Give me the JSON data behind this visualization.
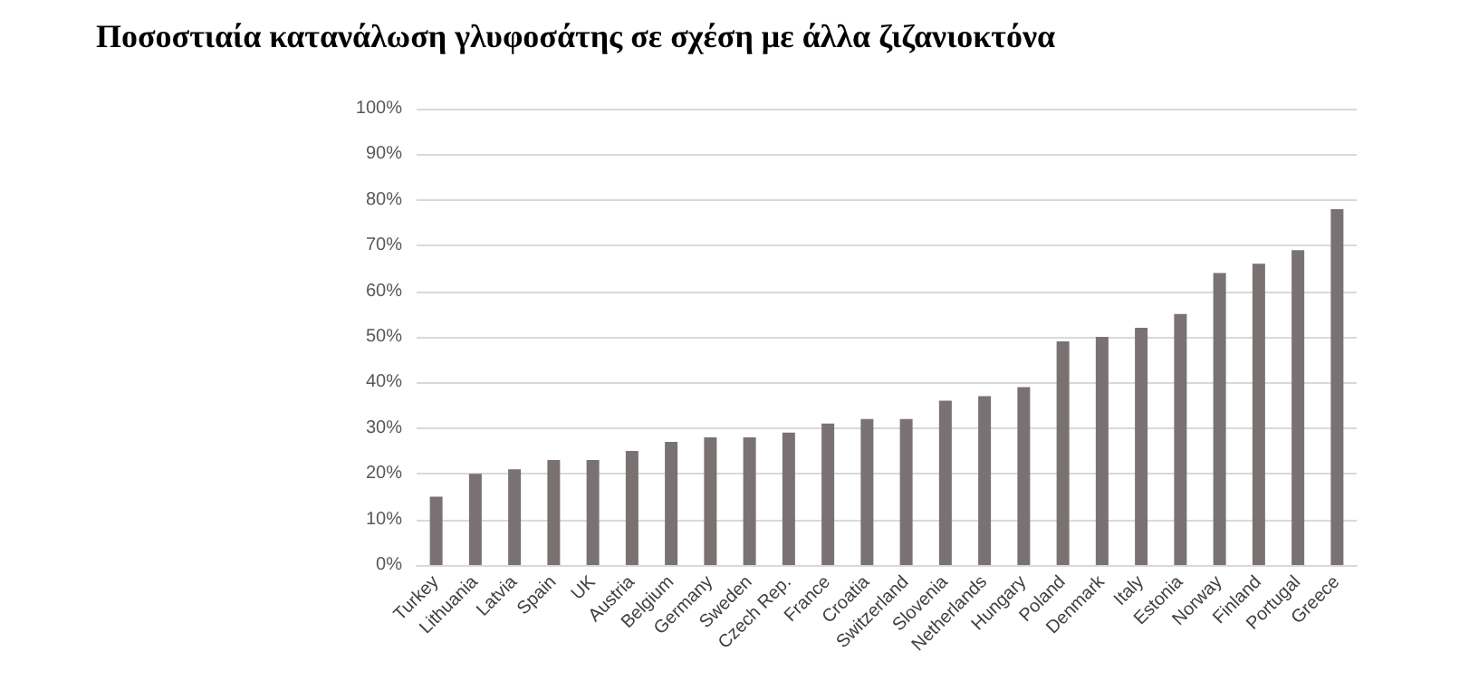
{
  "chart_data": {
    "type": "bar",
    "title": "Ποσοστιαία κατανάλωση γλυφοσάτης σε σχέση με άλλα ζιζανιοκτόνα",
    "categories": [
      "Turkey",
      "Lithuania",
      "Latvia",
      "Spain",
      "UK",
      "Austria",
      "Belgium",
      "Germany",
      "Sweden",
      "Czech Rep.",
      "France",
      "Croatia",
      "Switzerland",
      "Slovenia",
      "Netherlands",
      "Hungary",
      "Poland",
      "Denmark",
      "Italy",
      "Estonia",
      "Norway",
      "Finland",
      "Portugal",
      "Greece"
    ],
    "values": [
      15,
      20,
      21,
      23,
      23,
      25,
      27,
      28,
      28,
      29,
      31,
      32,
      32,
      36,
      37,
      39,
      49,
      50,
      52,
      55,
      64,
      66,
      69,
      78
    ],
    "color": "#7a7272",
    "ylim": [
      0,
      100
    ],
    "yticks": [
      {
        "value": 0,
        "label": "0%"
      },
      {
        "value": 10,
        "label": "10%"
      },
      {
        "value": 20,
        "label": "20%"
      },
      {
        "value": 30,
        "label": "30%"
      },
      {
        "value": 40,
        "label": "40%"
      },
      {
        "value": 50,
        "label": "50%"
      },
      {
        "value": 60,
        "label": "60%"
      },
      {
        "value": 70,
        "label": "70%"
      },
      {
        "value": 80,
        "label": "80%"
      },
      {
        "value": 90,
        "label": "90%"
      },
      {
        "value": 100,
        "label": "100%"
      }
    ],
    "grid": "y"
  }
}
